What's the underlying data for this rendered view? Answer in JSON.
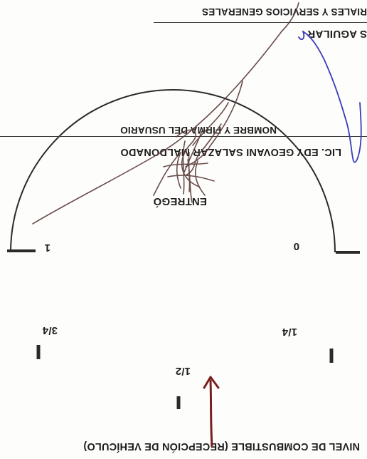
{
  "form": {
    "fuel_title": "NIVEL DE COMBUSTIBLE (RECEPCIÓN DE VEHÍCULO)",
    "gauge": {
      "label_empty": "0",
      "label_quarter": "1/4",
      "label_half": "1/2",
      "label_three_quarter": "3/4",
      "label_full": "1"
    },
    "delivered_label": "ENTREGÓ",
    "delivered_name": "LIC. EDY GEOVANI SALAZAR MALDONADO",
    "user_caption": "NOMBRE Y FIRMA DEL USUARIO",
    "receiver_name_fragment": "S AGUILAR",
    "receiver_caption_fragment": "RIALES Y SERVICIOS GENERALES"
  },
  "colors": {
    "ink": "#1d1d1d",
    "arrow": "#7a1f1f",
    "signature": "#5a3a36",
    "signature_blue": "#3b3bb8"
  },
  "fuel_level_fraction": 0.5
}
